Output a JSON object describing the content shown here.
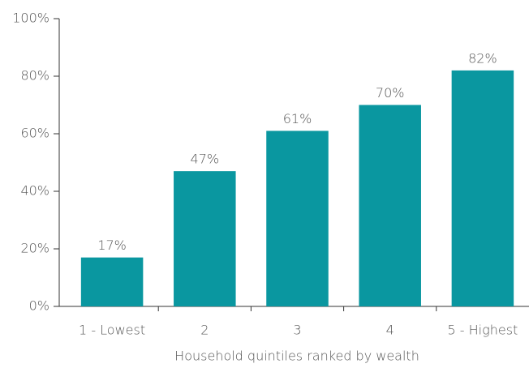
{
  "chart_data": {
    "type": "bar",
    "x_label": "Household quintiles ranked by wealth",
    "categories": [
      "1 - Lowest",
      "2",
      "3",
      "4",
      "5 - Highest"
    ],
    "values": [
      17,
      47,
      61,
      70,
      82
    ],
    "value_labels": [
      "17%",
      "47%",
      "61%",
      "70%",
      "82%"
    ],
    "color": "#0a97a0",
    "ylim": [
      0,
      100
    ],
    "yticks": [
      {
        "value": 0,
        "label": "0%"
      },
      {
        "value": 20,
        "label": "20%"
      },
      {
        "value": 40,
        "label": "40%"
      },
      {
        "value": 60,
        "label": "60%"
      },
      {
        "value": 80,
        "label": "80%"
      },
      {
        "value": 100,
        "label": "100%"
      }
    ],
    "grid": false
  }
}
